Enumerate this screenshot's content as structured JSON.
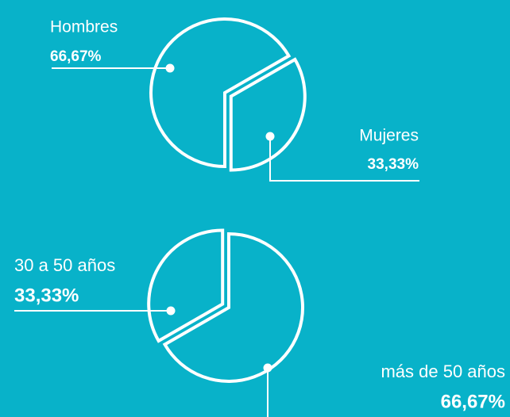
{
  "chart_data": [
    {
      "type": "pie",
      "categories": [
        "Hombres",
        "Mujeres"
      ],
      "values": [
        66.67,
        33.33
      ],
      "value_labels": [
        "66,67%",
        "33,33%"
      ],
      "color": "#ffffff"
    },
    {
      "type": "pie",
      "categories": [
        "30 a 50 años",
        "más de 50 años"
      ],
      "values": [
        33.33,
        66.67
      ],
      "value_labels": [
        "33,33%",
        "66,67%"
      ],
      "color": "#ffffff"
    }
  ]
}
